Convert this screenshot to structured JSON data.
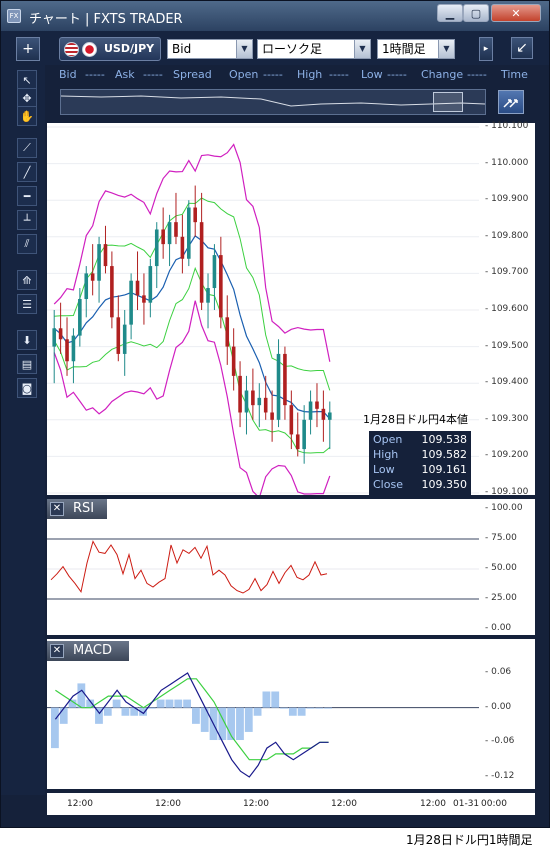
{
  "window": {
    "title": "チャート | FXTS TRADER",
    "icon": "fx-app-icon"
  },
  "toolbar": {
    "add_label": "+",
    "symbol": "USD/JPY",
    "price_type": "Bid",
    "chart_type": "ローソク足",
    "timeframe": "1時間足",
    "undock_label": "↙"
  },
  "quote": {
    "labels": [
      "Bid",
      "-----",
      "Ask",
      "-----",
      "Spread",
      "Open",
      "-----",
      "High",
      "-----",
      "Low",
      "-----",
      "Change",
      "-----",
      "Time"
    ]
  },
  "sidebar_tools": [
    "cursor-icon",
    "crosshair-icon",
    "hand-icon",
    "trendline-icon",
    "line-icon",
    "horizontal-line-icon",
    "vertical-line-icon",
    "parallel-lines-icon",
    "fan-icon",
    "fibonacci-icon",
    "download-icon",
    "list-icon",
    "camera-icon"
  ],
  "main_axis": {
    "ticks": [
      "110.100",
      "110.000",
      "109.900",
      "109.800",
      "109.700",
      "109.600",
      "109.500",
      "109.400",
      "109.300",
      "109.200",
      "109.100"
    ]
  },
  "rsi": {
    "title": "RSI",
    "ticks": [
      "100.00",
      "75.00",
      "50.00",
      "25.00",
      "0.00"
    ]
  },
  "macd": {
    "title": "MACD",
    "ticks": [
      "0.06",
      "0.00",
      "-0.06",
      "-0.12"
    ]
  },
  "x_axis": {
    "ticks": [
      "12:00",
      "12:00",
      "12:00",
      "12:00",
      "12:00",
      "01-31",
      "00:00"
    ]
  },
  "ohlc": {
    "heading": "1月28日ドル円4本値",
    "rows": [
      {
        "k": "Open",
        "v": "109.538"
      },
      {
        "k": "High",
        "v": "109.582"
      },
      {
        "k": "Low",
        "v": "109.161"
      },
      {
        "k": "Close",
        "v": "109.350"
      }
    ]
  },
  "caption": "1月28日ドル円1時間足",
  "colors": {
    "up": "#1f8a8a",
    "down": "#b02020",
    "bb_outer": "#d020c0",
    "bb_mid": "#3cd040",
    "ma": "#1a5fb0",
    "rsi": "#cc1b12",
    "macd": "#1a1a8c",
    "signal": "#3cd040",
    "hist": "#a7c8ef"
  },
  "chart_data": [
    {
      "type": "candlestick",
      "title": "",
      "ylim": [
        109.1,
        110.1
      ],
      "candles": [
        [
          109.5,
          109.6,
          109.4,
          109.55
        ],
        [
          109.55,
          109.62,
          109.48,
          109.52
        ],
        [
          109.52,
          109.58,
          109.42,
          109.46
        ],
        [
          109.46,
          109.55,
          109.4,
          109.53
        ],
        [
          109.53,
          109.66,
          109.5,
          109.63
        ],
        [
          109.63,
          109.72,
          109.58,
          109.7
        ],
        [
          109.7,
          109.78,
          109.64,
          109.68
        ],
        [
          109.68,
          109.8,
          109.62,
          109.78
        ],
        [
          109.78,
          109.83,
          109.7,
          109.72
        ],
        [
          109.72,
          109.76,
          109.55,
          109.58
        ],
        [
          109.58,
          109.64,
          109.46,
          109.48
        ],
        [
          109.48,
          109.6,
          109.42,
          109.56
        ],
        [
          109.56,
          109.7,
          109.52,
          109.68
        ],
        [
          109.68,
          109.76,
          109.6,
          109.64
        ],
        [
          109.64,
          109.7,
          109.56,
          109.62
        ],
        [
          109.62,
          109.74,
          109.58,
          109.72
        ],
        [
          109.72,
          109.84,
          109.66,
          109.82
        ],
        [
          109.82,
          109.88,
          109.74,
          109.78
        ],
        [
          109.78,
          109.86,
          109.72,
          109.84
        ],
        [
          109.84,
          109.92,
          109.78,
          109.8
        ],
        [
          109.8,
          109.86,
          109.7,
          109.74
        ],
        [
          109.74,
          109.9,
          109.72,
          109.88
        ],
        [
          109.88,
          109.94,
          109.8,
          109.84
        ],
        [
          109.84,
          109.92,
          109.6,
          109.62
        ],
        [
          109.62,
          109.7,
          109.55,
          109.66
        ],
        [
          109.66,
          109.78,
          109.6,
          109.75
        ],
        [
          109.75,
          109.8,
          109.55,
          109.58
        ],
        [
          109.58,
          109.64,
          109.45,
          109.5
        ],
        [
          109.5,
          109.55,
          109.38,
          109.42
        ],
        [
          109.42,
          109.46,
          109.28,
          109.32
        ],
        [
          109.32,
          109.42,
          109.26,
          109.38
        ],
        [
          109.38,
          109.44,
          109.3,
          109.34
        ],
        [
          109.34,
          109.4,
          109.28,
          109.36
        ],
        [
          109.36,
          109.42,
          109.3,
          109.32
        ],
        [
          109.32,
          109.38,
          109.24,
          109.3
        ],
        [
          109.3,
          109.52,
          109.28,
          109.48
        ],
        [
          109.48,
          109.5,
          109.3,
          109.34
        ],
        [
          109.34,
          109.38,
          109.22,
          109.26
        ],
        [
          109.26,
          109.32,
          109.2,
          109.22
        ],
        [
          109.22,
          109.34,
          109.18,
          109.3
        ],
        [
          109.3,
          109.38,
          109.26,
          109.35
        ],
        [
          109.35,
          109.4,
          109.28,
          109.33
        ],
        [
          109.33,
          109.38,
          109.24,
          109.3
        ],
        [
          109.3,
          109.35,
          109.22,
          109.32
        ]
      ]
    },
    {
      "type": "line",
      "title": "RSI",
      "ylim": [
        0,
        100
      ],
      "values": [
        41,
        46,
        52,
        44,
        38,
        31,
        55,
        73,
        64,
        63,
        70,
        62,
        46,
        62,
        42,
        49,
        38,
        35,
        39,
        42,
        70,
        55,
        66,
        63,
        68,
        59,
        69,
        45,
        49,
        45,
        36,
        32,
        30,
        33,
        42,
        32,
        37,
        48,
        38,
        47,
        53,
        43,
        41,
        45,
        56,
        45,
        46
      ]
    },
    {
      "type": "line",
      "title": "MACD",
      "ylim": [
        -0.14,
        0.1
      ],
      "macd": [
        -0.02,
        0.0,
        0.02,
        0.03,
        0.01,
        -0.01,
        0.01,
        0.03,
        0.01,
        0.0,
        -0.01,
        0.01,
        0.03,
        0.04,
        0.05,
        0.06,
        0.03,
        0.0,
        -0.03,
        -0.06,
        -0.09,
        -0.11,
        -0.12,
        -0.1,
        -0.07,
        -0.06,
        -0.08,
        -0.09,
        -0.08,
        -0.07,
        -0.06,
        -0.06
      ],
      "signal": [
        0.03,
        0.02,
        0.01,
        0.0,
        0.0,
        0.01,
        0.02,
        0.02,
        0.02,
        0.01,
        0.0,
        0.01,
        0.02,
        0.03,
        0.04,
        0.05,
        0.05,
        0.03,
        0.01,
        -0.02,
        -0.05,
        -0.07,
        -0.09,
        -0.09,
        -0.09,
        -0.08,
        -0.08,
        -0.08,
        -0.07,
        -0.07,
        -0.06,
        -0.06
      ]
    }
  ]
}
